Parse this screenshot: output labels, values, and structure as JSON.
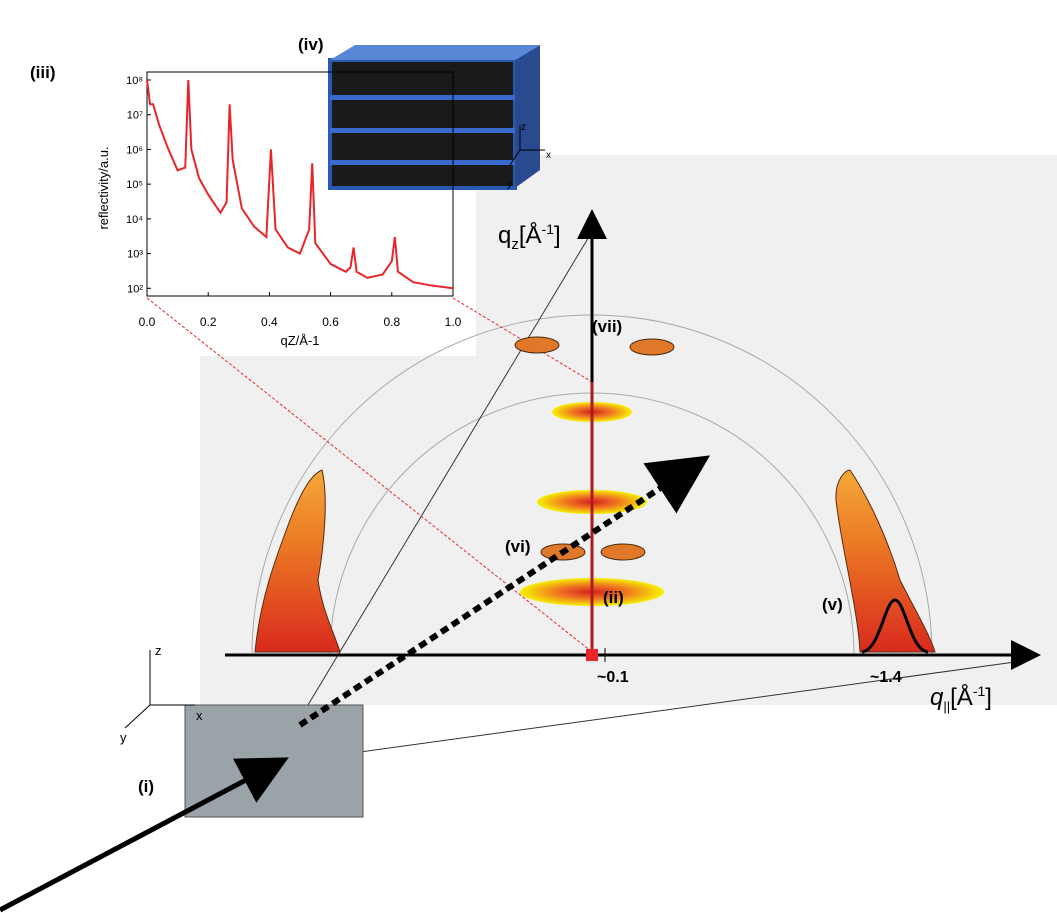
{
  "labels": {
    "i": "(i)",
    "ii": "(ii)",
    "iii": "(iii)",
    "iv": "(iv)",
    "v": "(v)",
    "vi": "(vi)",
    "vii": "(vii)"
  },
  "qz_axis": {
    "symbol": "q",
    "sub": "z",
    "unit": "[Å",
    "exp": "-1",
    "close": "]"
  },
  "qpar_axis": {
    "symbol": "q",
    "sub": "||",
    "unit": "[Å",
    "exp": "-1",
    "close": "]",
    "ticks": [
      "~0.1",
      "~1.4"
    ]
  },
  "coords_small": {
    "z": "z",
    "x": "x",
    "y": "y"
  },
  "coords_sample": {
    "z": "z",
    "x": "x",
    "y": "y"
  },
  "chart_data": {
    "type": "line",
    "x_label": "qZ/Å-1",
    "y_label": "reflectivity/a.u.",
    "log_y": true,
    "xlim": [
      0,
      1
    ],
    "xticks": [
      {
        "value": 0,
        "label": "0.0"
      },
      {
        "value": 0.2,
        "label": "0.2"
      },
      {
        "value": 0.4,
        "label": "0.4"
      },
      {
        "value": 0.6,
        "label": "0.6"
      },
      {
        "value": 0.8,
        "label": "0.8"
      },
      {
        "value": 1,
        "label": "1.0"
      }
    ],
    "ylim": [
      60,
      100000000
    ],
    "yticks": [
      {
        "value": 100,
        "label": "10²"
      },
      {
        "value": 1000,
        "label": "10³"
      },
      {
        "value": 10000,
        "label": "10⁴"
      },
      {
        "value": 100000,
        "label": "10⁵"
      },
      {
        "value": 1000000,
        "label": "10⁶"
      },
      {
        "value": 10000000,
        "label": "10⁷"
      },
      {
        "value": 100000000,
        "label": "10⁸"
      }
    ],
    "series": [
      {
        "color": "#e8262a",
        "x": [
          0,
          0.01,
          0.02,
          0.04,
          0.07,
          0.1,
          0.125,
          0.135,
          0.145,
          0.17,
          0.2,
          0.24,
          0.26,
          0.27,
          0.28,
          0.31,
          0.35,
          0.39,
          0.405,
          0.42,
          0.46,
          0.5,
          0.53,
          0.54,
          0.55,
          0.6,
          0.65,
          0.665,
          0.675,
          0.685,
          0.72,
          0.77,
          0.8,
          0.81,
          0.82,
          0.87,
          0.93,
          1.0
        ],
        "values": [
          100000000,
          20000000,
          20000000,
          5000000,
          1000000,
          250000,
          300000,
          100000000,
          1000000,
          150000,
          50000,
          15000,
          30000,
          20000000,
          500000,
          20000,
          6000,
          3000,
          1000000,
          5000,
          1500,
          1000,
          5000,
          400000,
          2000,
          500,
          300,
          400,
          1500,
          300,
          200,
          250,
          600,
          3000,
          300,
          150,
          120,
          100
        ]
      }
    ]
  }
}
